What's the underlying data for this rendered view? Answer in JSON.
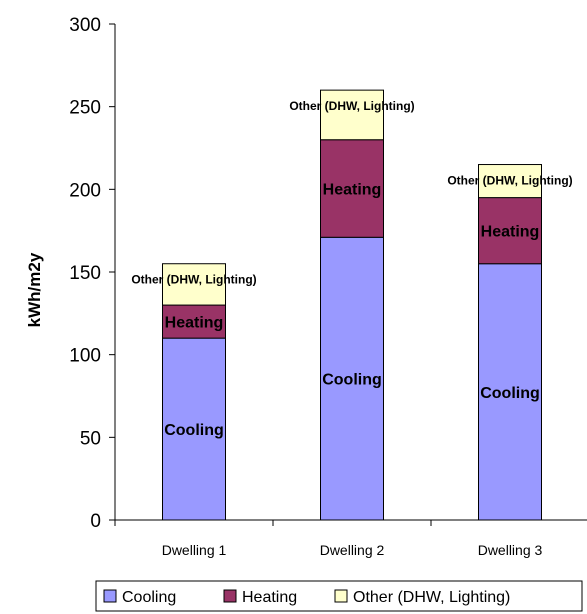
{
  "chart_data": {
    "type": "bar",
    "stacked": true,
    "categories": [
      "Dwelling 1",
      "Dwelling 2",
      "Dwelling 3"
    ],
    "series": [
      {
        "name": "Cooling",
        "values": [
          110,
          171,
          155
        ],
        "color": "#9999ff",
        "segment_label": "Cooling"
      },
      {
        "name": "Heating",
        "values": [
          20,
          59,
          40
        ],
        "color": "#993366",
        "segment_label": "Heating"
      },
      {
        "name": "Other (DHW, Lighting)",
        "values": [
          25,
          30,
          20
        ],
        "color": "#ffffcc",
        "segment_label": "Other (DHW, Lighting)"
      }
    ],
    "ylabel": "kWh/m2y",
    "ylim": [
      0,
      300
    ],
    "yticks": [
      0,
      50,
      100,
      150,
      200,
      250,
      300
    ],
    "grid": false,
    "legend_position": "bottom"
  }
}
